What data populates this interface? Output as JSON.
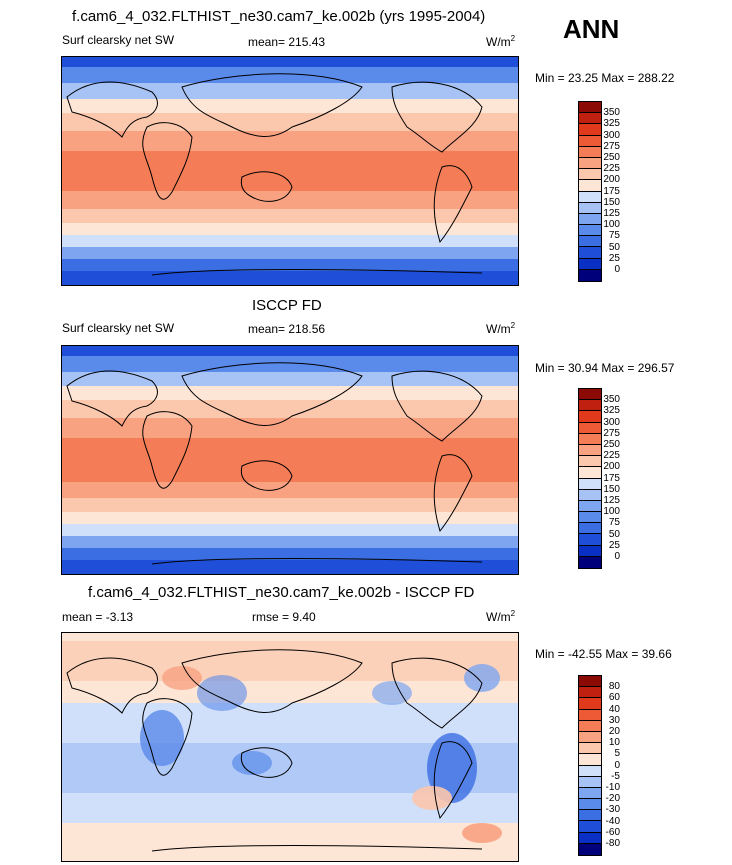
{
  "season": "ANN",
  "colors": {
    "abs": [
      "#00007a",
      "#0a2fc4",
      "#1f4fd8",
      "#3b6ee3",
      "#5a8aea",
      "#7ea6f0",
      "#a7c3f5",
      "#d0e0fa",
      "#fde6d6",
      "#fbc7ad",
      "#f8a282",
      "#f47d57",
      "#ee5a35",
      "#e0391b",
      "#c02010",
      "#8c0a05"
    ],
    "diff": [
      "#00007a",
      "#0a2fc4",
      "#1f4fd8",
      "#3b6ee3",
      "#5a8aea",
      "#7ea6f0",
      "#a7c3f5",
      "#d0e0fa",
      "#fde6d6",
      "#fbc7ad",
      "#f8a282",
      "#f47d57",
      "#ee5a35",
      "#e0391b",
      "#c02010",
      "#8c0a05"
    ]
  },
  "panels": [
    {
      "title": "f.cam6_4_032.FLTHIST_ne30.cam7_ke.002b (yrs 1995-2004)",
      "left_label": "Surf clearsky net SW",
      "center_label": "mean= 215.43",
      "units": "W/m",
      "units_sup": "2",
      "minmax": "Min =  23.25 Max = 288.22",
      "ticks": [
        "350",
        "325",
        "300",
        "275",
        "250",
        "225",
        "200",
        "175",
        "150",
        "125",
        "100",
        "75",
        "50",
        "25",
        "0"
      ]
    },
    {
      "title": "ISCCP FD",
      "left_label": "Surf clearsky net SW",
      "center_label": "mean= 218.56",
      "units": "W/m",
      "units_sup": "2",
      "minmax": "Min =  30.94 Max = 296.57",
      "ticks": [
        "350",
        "325",
        "300",
        "275",
        "250",
        "225",
        "200",
        "175",
        "150",
        "125",
        "100",
        "75",
        "50",
        "25",
        "0"
      ]
    },
    {
      "title": "f.cam6_4_032.FLTHIST_ne30.cam7_ke.002b - ISCCP FD",
      "left_label": "mean =  -3.13",
      "center_label": "rmse =   9.40",
      "units": "W/m",
      "units_sup": "2",
      "minmax": "Min = -42.55 Max =  39.66",
      "ticks": [
        "80",
        "60",
        "40",
        "30",
        "20",
        "10",
        "5",
        "0",
        "-5",
        "-10",
        "-20",
        "-30",
        "-40",
        "-60",
        "-80"
      ]
    }
  ],
  "chart_data": [
    {
      "type": "heatmap",
      "title": "f.cam6_4_032.FLTHIST_ne30.cam7_ke.002b (yrs 1995-2004)",
      "subtitle": "Surf clearsky net SW",
      "units": "W/m2",
      "mean": 215.43,
      "min": 23.25,
      "max": 288.22,
      "colorbar_levels": [
        0,
        25,
        50,
        75,
        100,
        125,
        150,
        175,
        200,
        225,
        250,
        275,
        300,
        325,
        350
      ]
    },
    {
      "type": "heatmap",
      "title": "ISCCP FD",
      "subtitle": "Surf clearsky net SW",
      "units": "W/m2",
      "mean": 218.56,
      "min": 30.94,
      "max": 296.57,
      "colorbar_levels": [
        0,
        25,
        50,
        75,
        100,
        125,
        150,
        175,
        200,
        225,
        250,
        275,
        300,
        325,
        350
      ]
    },
    {
      "type": "heatmap",
      "title": "f.cam6_4_032.FLTHIST_ne30.cam7_ke.002b - ISCCP FD",
      "units": "W/m2",
      "mean": -3.13,
      "rmse": 9.4,
      "min": -42.55,
      "max": 39.66,
      "colorbar_levels": [
        -80,
        -60,
        -40,
        -30,
        -20,
        -10,
        -5,
        0,
        5,
        10,
        20,
        30,
        40,
        60,
        80
      ]
    }
  ]
}
